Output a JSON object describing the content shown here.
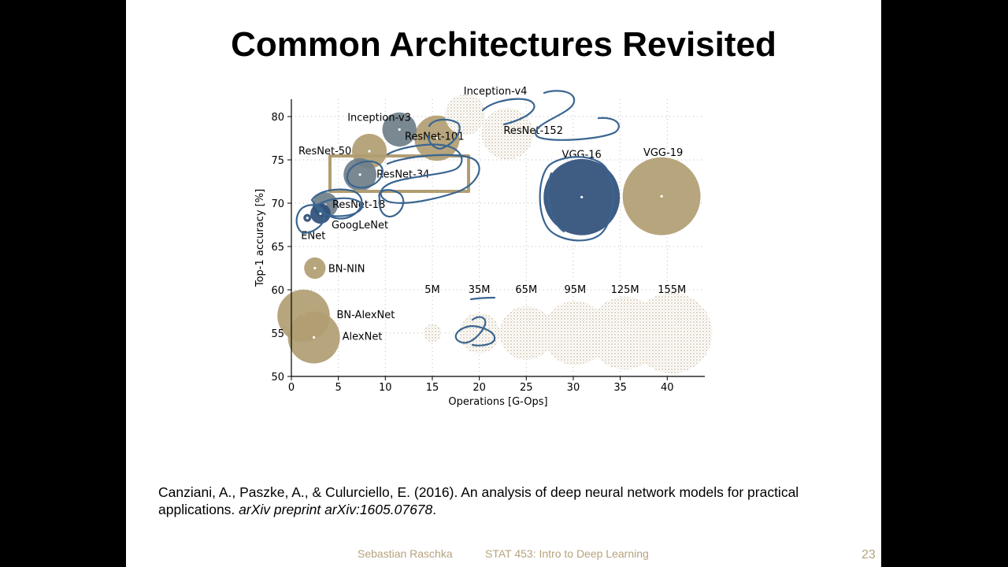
{
  "slide": {
    "title": "Common Architectures Revisited",
    "citation": {
      "authors_year": "Canziani, A., Paszke, A., & Culurciello, E. (2016). An analysis of deep neural network models for practical applications. ",
      "journal": "arXiv preprint arXiv:1605.07678",
      "end": "."
    },
    "footer": {
      "author": "Sebastian Raschka",
      "course": "STAT 453: Intro to Deep Learning",
      "page": "23"
    }
  },
  "colors": {
    "tan": "#b19d72",
    "slate": "#6e7e88",
    "navy": "#2f4e78",
    "ink": "#3a6591",
    "dots": "#c9b8a0",
    "bg": "#ffffff",
    "page_bg": "#000000"
  },
  "chart_data": {
    "type": "scatter",
    "title": "",
    "xlabel": "Operations [G-Ops]",
    "ylabel": "Top-1 accuracy [%]",
    "xlim": [
      0,
      44
    ],
    "ylim": [
      50,
      82
    ],
    "xticks": [
      0,
      5,
      10,
      15,
      20,
      25,
      30,
      35,
      40
    ],
    "yticks": [
      50,
      55,
      60,
      65,
      70,
      75,
      80
    ],
    "grid": true,
    "points": [
      {
        "name": "Inception-v4",
        "x": 18.5,
        "y": 80.2,
        "params_m": 35,
        "color": "dots"
      },
      {
        "name": "Inception-v3",
        "x": 11.5,
        "y": 78.5,
        "params_m": 24,
        "color": "slate"
      },
      {
        "name": "ResNet-152",
        "x": 23.0,
        "y": 78.0,
        "params_m": 60,
        "color": "dots"
      },
      {
        "name": "ResNet-101",
        "x": 15.5,
        "y": 77.5,
        "params_m": 45,
        "color": "tan"
      },
      {
        "name": "ResNet-50",
        "x": 8.3,
        "y": 76.0,
        "params_m": 25,
        "color": "tan"
      },
      {
        "name": "ResNet-34",
        "x": 7.3,
        "y": 73.3,
        "params_m": 22,
        "color": "slate"
      },
      {
        "name": "ResNet-18",
        "x": 3.6,
        "y": 69.8,
        "params_m": 12,
        "color": "slate"
      },
      {
        "name": "GoogLeNet",
        "x": 3.1,
        "y": 68.8,
        "params_m": 7,
        "color": "navy"
      },
      {
        "name": "ENet",
        "x": 1.7,
        "y": 68.3,
        "params_m": 0.4,
        "color": "navy"
      },
      {
        "name": "BN-NIN",
        "x": 2.5,
        "y": 62.5,
        "params_m": 8,
        "color": "tan"
      },
      {
        "name": "BN-AlexNet",
        "x": 1.3,
        "y": 57.0,
        "params_m": 62,
        "color": "tan"
      },
      {
        "name": "AlexNet",
        "x": 2.4,
        "y": 54.5,
        "params_m": 61,
        "color": "tan"
      },
      {
        "name": "VGG-16",
        "x": 30.9,
        "y": 70.7,
        "params_m": 138,
        "color": "navy"
      },
      {
        "name": "VGG-19",
        "x": 39.4,
        "y": 70.8,
        "params_m": 144,
        "color": "tan"
      }
    ],
    "size_legend": [
      {
        "label": "5M",
        "x": 15.0,
        "y": 55,
        "params_m": 5
      },
      {
        "label": "35M",
        "x": 20.0,
        "y": 55,
        "params_m": 35
      },
      {
        "label": "65M",
        "x": 25.0,
        "y": 55,
        "params_m": 65
      },
      {
        "label": "95M",
        "x": 30.2,
        "y": 55,
        "params_m": 95
      },
      {
        "label": "125M",
        "x": 35.5,
        "y": 55,
        "params_m": 125
      },
      {
        "label": "155M",
        "x": 40.5,
        "y": 55,
        "params_m": 155
      }
    ]
  }
}
